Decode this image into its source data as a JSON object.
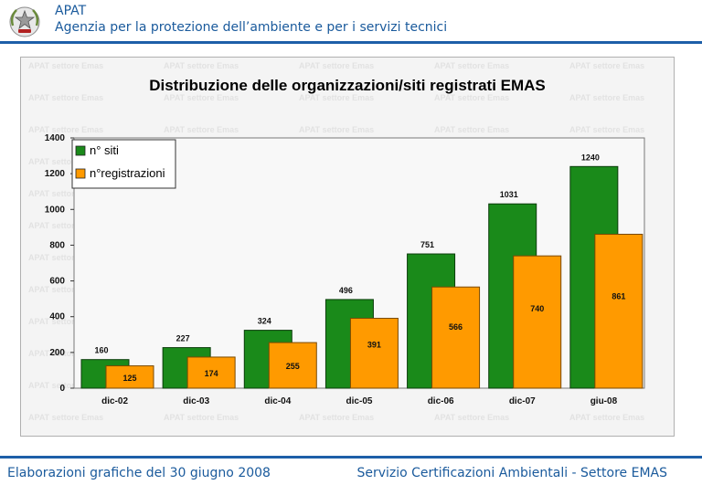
{
  "header": {
    "org_name": "APAT",
    "org_full": "Agenzia per la protezione dell’ambiente e per i servizi tecnici"
  },
  "watermark_text": "APAT settore Emas",
  "footer": {
    "left": "Elaborazioni grafiche del 30 giugno 2008",
    "right": "Servizio Certificazioni Ambientali - Settore EMAS"
  },
  "colors": {
    "brand_blue": "#1d5fa8",
    "siti": "#1a8a1a",
    "registrazioni": "#ff9a00"
  },
  "chart_data": {
    "type": "bar",
    "title": "Distribuzione delle organizzazioni/siti registrati EMAS",
    "categories": [
      "dic-02",
      "dic-03",
      "dic-04",
      "dic-05",
      "dic-06",
      "dic-07",
      "giu-08"
    ],
    "series": [
      {
        "name": "n° siti",
        "values": [
          160,
          227,
          324,
          496,
          751,
          1031,
          1240
        ]
      },
      {
        "name": "n°registrazioni",
        "values": [
          125,
          174,
          255,
          391,
          566,
          740,
          861
        ]
      }
    ],
    "ylim": [
      0,
      1400
    ],
    "yticks": [
      0,
      200,
      400,
      600,
      800,
      1000,
      1200,
      1400
    ],
    "legend": "top-left",
    "grid": false
  }
}
